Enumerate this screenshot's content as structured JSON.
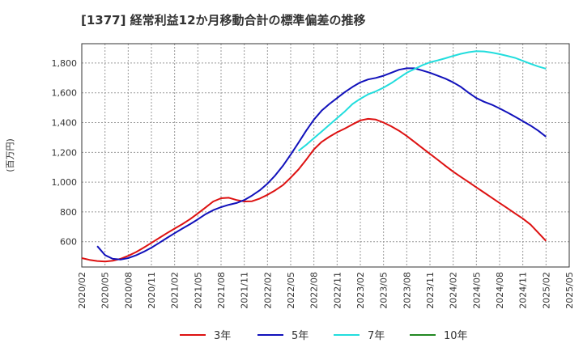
{
  "chart_data": {
    "type": "line",
    "title": "[1377]  経常利益12か月移動合計の標準偏差の推移",
    "ylabel": "(百万円)",
    "xlabel": "",
    "ylim": [
      430,
      1930
    ],
    "yticks": [
      600,
      800,
      1000,
      1200,
      1400,
      1600,
      1800
    ],
    "ytick_labels": [
      "600",
      "800",
      "1,000",
      "1,200",
      "1,400",
      "1,600",
      "1,800"
    ],
    "x_start": "2020/02",
    "x_end": "2025/05",
    "xtick_labels": [
      "2020/02",
      "2020/05",
      "2020/08",
      "2020/11",
      "2021/02",
      "2021/05",
      "2021/08",
      "2021/11",
      "2022/02",
      "2022/05",
      "2022/08",
      "2022/11",
      "2023/02",
      "2023/05",
      "2023/08",
      "2023/11",
      "2024/02",
      "2024/05",
      "2024/08",
      "2024/11",
      "2025/02",
      "2025/05"
    ],
    "grid": true,
    "legend_position": "bottom",
    "series": [
      {
        "name": "3年",
        "color": "#dd1111",
        "x": [
          "2020/02",
          "2020/03",
          "2020/04",
          "2020/05",
          "2020/06",
          "2020/07",
          "2020/08",
          "2020/09",
          "2020/10",
          "2020/11",
          "2020/12",
          "2021/01",
          "2021/02",
          "2021/03",
          "2021/04",
          "2021/05",
          "2021/06",
          "2021/07",
          "2021/08",
          "2021/09",
          "2021/10",
          "2021/11",
          "2021/12",
          "2022/01",
          "2022/02",
          "2022/03",
          "2022/04",
          "2022/05",
          "2022/06",
          "2022/07",
          "2022/08",
          "2022/09",
          "2022/10",
          "2022/11",
          "2022/12",
          "2023/01",
          "2023/02",
          "2023/03",
          "2023/04",
          "2023/05",
          "2023/06",
          "2023/07",
          "2023/08",
          "2023/09",
          "2023/10",
          "2023/11",
          "2023/12",
          "2024/01",
          "2024/02",
          "2024/03",
          "2024/04",
          "2024/05",
          "2024/06",
          "2024/07",
          "2024/08",
          "2024/09",
          "2024/10",
          "2024/11",
          "2024/12",
          "2025/01",
          "2025/02"
        ],
        "values": [
          490,
          478,
          470,
          467,
          472,
          485,
          505,
          530,
          560,
          592,
          625,
          657,
          688,
          718,
          752,
          790,
          830,
          870,
          892,
          895,
          880,
          870,
          872,
          890,
          915,
          945,
          980,
          1030,
          1085,
          1150,
          1220,
          1270,
          1305,
          1335,
          1360,
          1388,
          1415,
          1425,
          1420,
          1400,
          1375,
          1345,
          1310,
          1270,
          1230,
          1190,
          1150,
          1110,
          1070,
          1035,
          1000,
          965,
          930,
          895,
          860,
          825,
          790,
          755,
          715,
          660,
          605
        ]
      },
      {
        "name": "5年",
        "color": "#1111bb",
        "x": [
          "2020/04",
          "2020/05",
          "2020/06",
          "2020/07",
          "2020/08",
          "2020/09",
          "2020/10",
          "2020/11",
          "2020/12",
          "2021/01",
          "2021/02",
          "2021/03",
          "2021/04",
          "2021/05",
          "2021/06",
          "2021/07",
          "2021/08",
          "2021/09",
          "2021/10",
          "2021/11",
          "2021/12",
          "2022/01",
          "2022/02",
          "2022/03",
          "2022/04",
          "2022/05",
          "2022/06",
          "2022/07",
          "2022/08",
          "2022/09",
          "2022/10",
          "2022/11",
          "2022/12",
          "2023/01",
          "2023/02",
          "2023/03",
          "2023/04",
          "2023/05",
          "2023/06",
          "2023/07",
          "2023/08",
          "2023/09",
          "2023/10",
          "2023/11",
          "2023/12",
          "2024/01",
          "2024/02",
          "2024/03",
          "2024/04",
          "2024/05",
          "2024/06",
          "2024/07",
          "2024/08",
          "2024/09",
          "2024/10",
          "2024/11",
          "2024/12",
          "2025/01",
          "2025/02"
        ],
        "values": [
          570,
          510,
          485,
          480,
          490,
          508,
          532,
          560,
          592,
          625,
          657,
          688,
          718,
          750,
          785,
          812,
          832,
          848,
          860,
          880,
          910,
          945,
          990,
          1045,
          1110,
          1185,
          1265,
          1345,
          1420,
          1480,
          1525,
          1565,
          1605,
          1640,
          1670,
          1690,
          1700,
          1715,
          1735,
          1755,
          1765,
          1765,
          1750,
          1735,
          1715,
          1695,
          1670,
          1640,
          1600,
          1565,
          1540,
          1520,
          1495,
          1468,
          1440,
          1410,
          1380,
          1345,
          1305
        ]
      },
      {
        "name": "7年",
        "color": "#22dddd",
        "x": [
          "2022/06",
          "2022/07",
          "2022/08",
          "2022/09",
          "2022/10",
          "2022/11",
          "2022/12",
          "2023/01",
          "2023/02",
          "2023/03",
          "2023/04",
          "2023/05",
          "2023/06",
          "2023/07",
          "2023/08",
          "2023/09",
          "2023/10",
          "2023/11",
          "2023/12",
          "2024/01",
          "2024/02",
          "2024/03",
          "2024/04",
          "2024/05",
          "2024/06",
          "2024/07",
          "2024/08",
          "2024/09",
          "2024/10",
          "2024/11",
          "2024/12",
          "2025/01",
          "2025/02"
        ],
        "values": [
          1210,
          1250,
          1295,
          1340,
          1385,
          1430,
          1475,
          1525,
          1560,
          1590,
          1610,
          1635,
          1665,
          1700,
          1735,
          1760,
          1785,
          1805,
          1818,
          1832,
          1848,
          1862,
          1873,
          1880,
          1878,
          1870,
          1860,
          1848,
          1835,
          1815,
          1795,
          1777,
          1762
        ]
      },
      {
        "name": "10年",
        "color": "#228822",
        "x": [],
        "values": []
      }
    ]
  }
}
